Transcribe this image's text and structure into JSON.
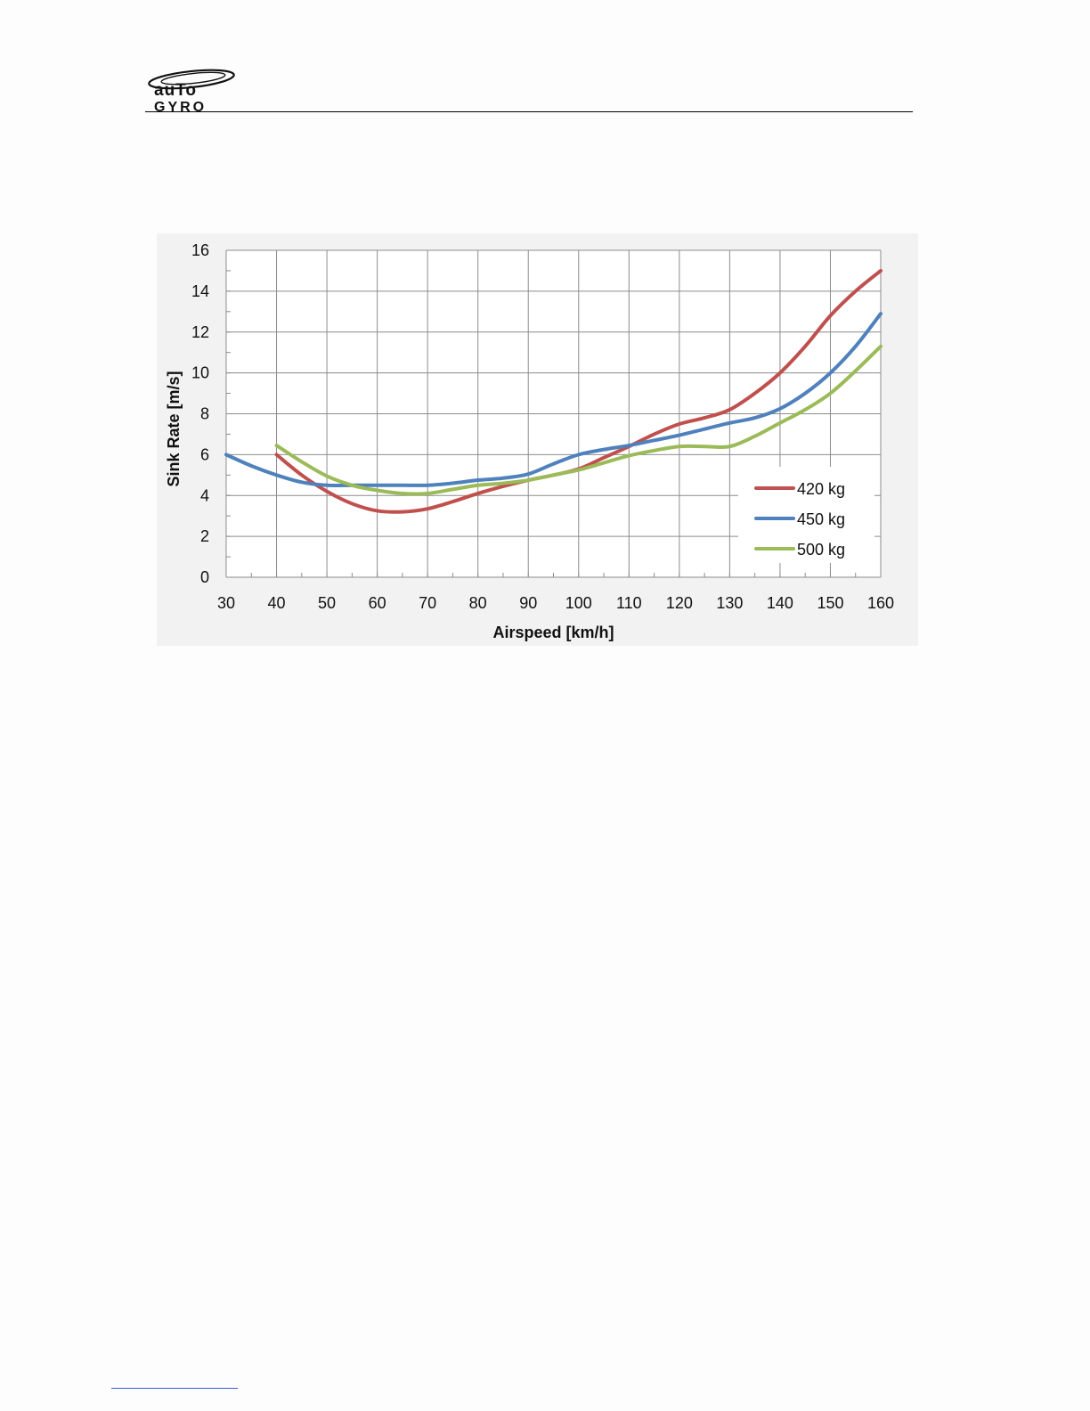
{
  "header": {
    "logo": {
      "icon": "autogyro-logo",
      "line1": "auTo",
      "line2": "GYRO"
    }
  },
  "chart_data": {
    "type": "line",
    "xlabel": "Airspeed [km/h]",
    "ylabel": "Sink Rate  [m/s]",
    "xlim": [
      30,
      160
    ],
    "ylim": [
      0,
      16
    ],
    "xticks": [
      30,
      40,
      50,
      60,
      70,
      80,
      90,
      100,
      110,
      120,
      130,
      140,
      150,
      160
    ],
    "yticks": [
      0,
      2,
      4,
      6,
      8,
      10,
      12,
      14,
      16
    ],
    "grid": true,
    "legend_position": "bottom-right",
    "series": [
      {
        "name": "420 kg",
        "color": "#c0504d",
        "x": [
          40,
          45,
          50,
          55,
          60,
          65,
          70,
          75,
          80,
          85,
          90,
          95,
          100,
          105,
          110,
          115,
          120,
          125,
          130,
          135,
          140,
          145,
          150,
          155,
          160
        ],
        "y": [
          6.0,
          5.0,
          4.2,
          3.6,
          3.25,
          3.2,
          3.35,
          3.7,
          4.1,
          4.45,
          4.75,
          5.0,
          5.3,
          5.85,
          6.4,
          7.0,
          7.5,
          7.8,
          8.2,
          9.0,
          10.0,
          11.3,
          12.8,
          14.0,
          15.0
        ]
      },
      {
        "name": "450 kg",
        "color": "#4f81bd",
        "x": [
          30,
          35,
          40,
          45,
          50,
          55,
          60,
          65,
          70,
          75,
          80,
          85,
          90,
          95,
          100,
          105,
          110,
          115,
          120,
          125,
          130,
          135,
          140,
          145,
          150,
          155,
          160
        ],
        "y": [
          6.0,
          5.45,
          5.0,
          4.65,
          4.5,
          4.5,
          4.5,
          4.5,
          4.5,
          4.6,
          4.75,
          4.85,
          5.05,
          5.55,
          6.0,
          6.25,
          6.45,
          6.7,
          6.95,
          7.25,
          7.55,
          7.8,
          8.25,
          9.0,
          10.0,
          11.3,
          12.9
        ]
      },
      {
        "name": "500 kg",
        "color": "#9bbb59",
        "x": [
          40,
          45,
          50,
          55,
          60,
          65,
          70,
          75,
          80,
          85,
          90,
          95,
          100,
          105,
          110,
          115,
          120,
          125,
          130,
          135,
          140,
          145,
          150,
          155,
          160
        ],
        "y": [
          6.45,
          5.65,
          4.95,
          4.5,
          4.25,
          4.1,
          4.1,
          4.3,
          4.5,
          4.6,
          4.75,
          5.0,
          5.25,
          5.6,
          5.95,
          6.2,
          6.4,
          6.4,
          6.4,
          6.9,
          7.55,
          8.2,
          9.0,
          10.1,
          11.3
        ]
      }
    ]
  }
}
